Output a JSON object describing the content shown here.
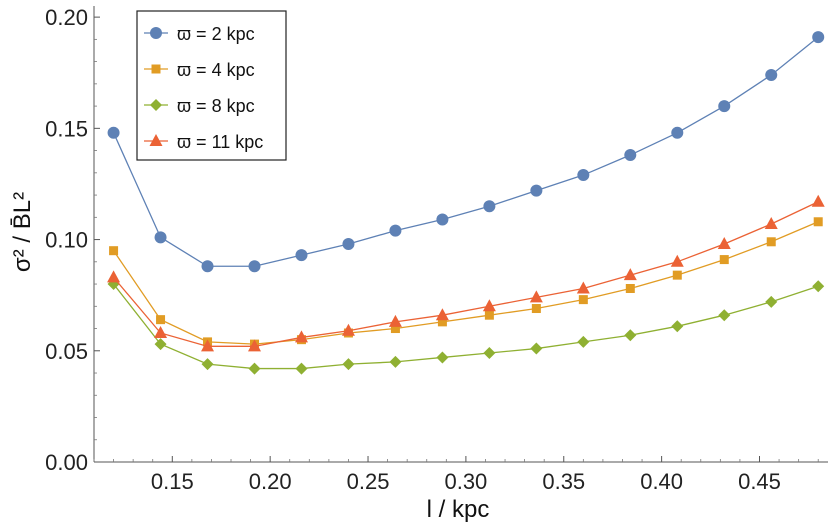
{
  "chart_data": {
    "type": "line",
    "title": "",
    "xlabel": "l / kpc",
    "ylabel": "σ² / B̄L²",
    "xlim": [
      0.11,
      0.485
    ],
    "ylim": [
      0.0,
      0.205
    ],
    "xticks": [
      {
        "value": 0.15,
        "label": "0.15"
      },
      {
        "value": 0.2,
        "label": "0.20"
      },
      {
        "value": 0.25,
        "label": "0.25"
      },
      {
        "value": 0.3,
        "label": "0.30"
      },
      {
        "value": 0.35,
        "label": "0.35"
      },
      {
        "value": 0.4,
        "label": "0.40"
      },
      {
        "value": 0.45,
        "label": "0.45"
      }
    ],
    "yticks": [
      {
        "value": 0.0,
        "label": "0.00"
      },
      {
        "value": 0.05,
        "label": "0.05"
      },
      {
        "value": 0.1,
        "label": "0.10"
      },
      {
        "value": 0.15,
        "label": "0.15"
      },
      {
        "value": 0.2,
        "label": "0.20"
      }
    ],
    "grid": false,
    "legend_position": "top-left",
    "x": [
      0.12,
      0.144,
      0.168,
      0.192,
      0.216,
      0.24,
      0.264,
      0.288,
      0.312,
      0.336,
      0.36,
      0.384,
      0.408,
      0.432,
      0.456,
      0.48
    ],
    "series": [
      {
        "name": "ϖ = 2 kpc",
        "color": "#5E81B5",
        "marker": "circle",
        "values": [
          0.148,
          0.101,
          0.088,
          0.088,
          0.093,
          0.098,
          0.104,
          0.109,
          0.115,
          0.122,
          0.129,
          0.138,
          0.148,
          0.16,
          0.174,
          0.191
        ]
      },
      {
        "name": "ϖ = 4 kpc",
        "color": "#E19C24",
        "marker": "square",
        "values": [
          0.095,
          0.064,
          0.054,
          0.053,
          0.055,
          0.058,
          0.06,
          0.063,
          0.066,
          0.069,
          0.073,
          0.078,
          0.084,
          0.091,
          0.099,
          0.108
        ]
      },
      {
        "name": "ϖ = 8 kpc",
        "color": "#8FB032",
        "marker": "diamond",
        "values": [
          0.08,
          0.053,
          0.044,
          0.042,
          0.042,
          0.044,
          0.045,
          0.047,
          0.049,
          0.051,
          0.054,
          0.057,
          0.061,
          0.066,
          0.072,
          0.079
        ]
      },
      {
        "name": "ϖ = 11 kpc",
        "color": "#EB6235",
        "marker": "triangle",
        "values": [
          0.083,
          0.058,
          0.052,
          0.052,
          0.056,
          0.059,
          0.063,
          0.066,
          0.07,
          0.074,
          0.078,
          0.084,
          0.09,
          0.098,
          0.107,
          0.117
        ]
      }
    ]
  }
}
